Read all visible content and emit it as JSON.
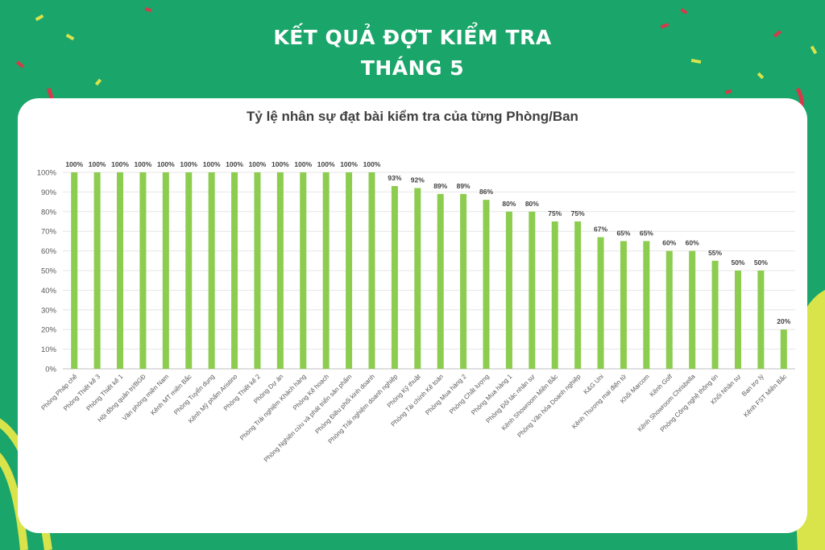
{
  "header": {
    "title_line1": "KẾT QUẢ ĐỢT KIỂM TRA",
    "title_line2": "THÁNG 5"
  },
  "colors": {
    "background": "#1aa56a",
    "bar": "#8ccc4e",
    "card": "#ffffff",
    "accent_yellow": "#d9e34a",
    "ribbon_red": "#d63a4a"
  },
  "chart_data": {
    "type": "bar",
    "title": "Tỷ lệ nhân sự đạt bài kiểm tra của từng Phòng/Ban",
    "xlabel": "",
    "ylabel": "",
    "ylim": [
      0,
      100
    ],
    "yticks": [
      "0%",
      "10%",
      "20%",
      "30%",
      "40%",
      "50%",
      "60%",
      "70%",
      "80%",
      "90%",
      "100%"
    ],
    "grid": true,
    "categories": [
      "Phòng Pháp chế",
      "Phòng Thiết kế 3",
      "Phòng Thiết kế 1",
      "Hội đồng quản trị/BGĐ",
      "Văn phòng miền Nam",
      "Kênh MT miền Bắc",
      "Phòng Tuyển dụng",
      "Kênh Mỹ phẩm Aristino",
      "Phòng Thiết kế 2",
      "Phòng Dự án",
      "Phòng Trải nghiệm Khách hàng",
      "Phòng Kế hoạch",
      "Phòng Nghiên cứu và phát triển sản phẩm",
      "Phòng Điều phối kinh doanh",
      "Phòng Trải nghiệm doanh nghiệp",
      "Phòng Kỹ thuật",
      "Phòng Tài chính Kế toán",
      "Phòng Mua hàng 2",
      "Phòng Chất lượng",
      "Phòng Mua hàng 1",
      "Phòng Đối tác nhân sự",
      "Kênh Showroom Miền Bắc",
      "Phòng Văn hóa Doanh nghiệp",
      "K&G Uni",
      "Kênh Thương mại điện tử",
      "Khối Marcom",
      "Kênh Golf",
      "Kênh Showroom Chrisbella",
      "Phòng Công nghệ thông tin",
      "Khối Nhân sự",
      "Ban trợ lý",
      "Kênh FST Miền Bắc"
    ],
    "values": [
      100,
      100,
      100,
      100,
      100,
      100,
      100,
      100,
      100,
      100,
      100,
      100,
      100,
      100,
      93,
      92,
      89,
      89,
      86,
      80,
      80,
      75,
      75,
      67,
      65,
      65,
      60,
      60,
      55,
      50,
      50,
      20
    ],
    "data_labels": [
      "100%",
      "100%",
      "100%",
      "100%",
      "100%",
      "100%",
      "100%",
      "100%",
      "100%",
      "100%",
      "100%",
      "100%",
      "100%",
      "100%",
      "93%",
      "92%",
      "89%",
      "89%",
      "86%",
      "80%",
      "80%",
      "75%",
      "75%",
      "67%",
      "65%",
      "65%",
      "60%",
      "60%",
      "55%",
      "50%",
      "50%",
      "20%"
    ]
  }
}
